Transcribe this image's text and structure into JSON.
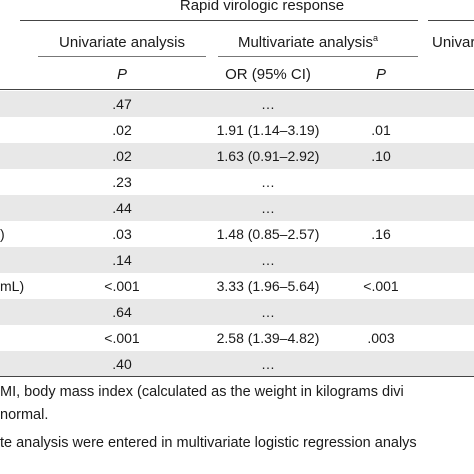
{
  "header": {
    "group_title": "Rapid virologic response",
    "univariate": "Univariate analysis",
    "multivariate": "Multivariate analysis",
    "multivariate_sup": "a",
    "univariate_cut": "Univar",
    "p_label": "P",
    "or_label": "OR (95% CI)",
    "p2_label": "P"
  },
  "rows": [
    {
      "label": "",
      "p": ".47",
      "or": "…",
      "p2": ""
    },
    {
      "label": "",
      "p": ".02",
      "or": "1.91 (1.14–3.19)",
      "p2": ".01"
    },
    {
      "label": "",
      "p": ".02",
      "or": "1.63 (0.91–2.92)",
      "p2": ".10"
    },
    {
      "label": "",
      "p": ".23",
      "or": "…",
      "p2": ""
    },
    {
      "label": "",
      "p": ".44",
      "or": "…",
      "p2": ""
    },
    {
      "label": ")",
      "p": ".03",
      "or": "1.48 (0.85–2.57)",
      "p2": ".16"
    },
    {
      "label": "",
      "p": ".14",
      "or": "…",
      "p2": ""
    },
    {
      "label": "mL)",
      "p": "<.001",
      "or": "3.33 (1.96–5.64)",
      "p2": "<.001"
    },
    {
      "label": "",
      "p": ".64",
      "or": "…",
      "p2": ""
    },
    {
      "label": "",
      "p": "<.001",
      "or": "2.58 (1.39–4.82)",
      "p2": ".003"
    },
    {
      "label": "",
      "p": ".40",
      "or": "…",
      "p2": ""
    }
  ],
  "footnotes": {
    "line1": "MI, body mass index (calculated as the weight in kilograms divi",
    "line2": "normal.",
    "line3": "te analysis were entered in multivariate logistic regression analys"
  }
}
